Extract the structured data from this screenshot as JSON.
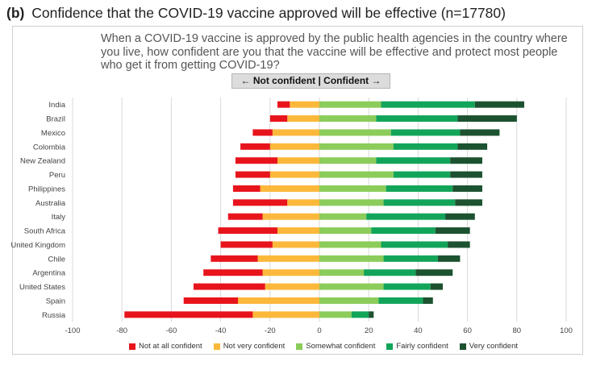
{
  "heading": {
    "panel_label": "(b)",
    "title": "Confidence that the COVID-19 vaccine approved will be effective (n=17780)"
  },
  "question": "When a COVID-19 vaccine is approved by the public health agencies in the country where you live, how confident are you that the vaccine will be effective and protect most people who get it from getting COVID-19?",
  "direction_label": "← Not confident | Confident →",
  "colors": {
    "not_at_all": "#e8141c",
    "not_very": "#fbb83a",
    "somewhat": "#8ccc5a",
    "fairly": "#12a55a",
    "very": "#1c5230"
  },
  "chart_data": {
    "type": "bar",
    "orientation": "horizontal",
    "stacking": "diverging",
    "categories": [
      "India",
      "Brazil",
      "Mexico",
      "Colombia",
      "New Zealand",
      "Peru",
      "Philippines",
      "Australia",
      "Italy",
      "South Africa",
      "United Kingdom",
      "Chile",
      "Argentina",
      "United States",
      "Spain",
      "Russia"
    ],
    "series": [
      {
        "name": "Not at all confident",
        "key": "not_at_all",
        "side": "negative",
        "values": [
          5,
          7,
          8,
          12,
          17,
          14,
          11,
          22,
          14,
          24,
          21,
          19,
          24,
          29,
          22,
          52
        ]
      },
      {
        "name": "Not very confident",
        "key": "not_very",
        "side": "negative",
        "values": [
          12,
          13,
          19,
          20,
          17,
          20,
          24,
          13,
          23,
          17,
          19,
          25,
          23,
          22,
          33,
          27
        ]
      },
      {
        "name": "Somewhat confident",
        "key": "somewhat",
        "side": "positive",
        "values": [
          25,
          23,
          29,
          30,
          23,
          30,
          27,
          26,
          19,
          21,
          25,
          26,
          18,
          26,
          24,
          13
        ]
      },
      {
        "name": "Fairly confident",
        "key": "fairly",
        "side": "positive",
        "values": [
          38,
          33,
          28,
          26,
          30,
          23,
          27,
          29,
          32,
          26,
          27,
          22,
          21,
          19,
          18,
          7
        ]
      },
      {
        "name": "Very confident",
        "key": "very",
        "side": "positive",
        "values": [
          20,
          24,
          16,
          12,
          13,
          13,
          12,
          11,
          12,
          14,
          9,
          9,
          15,
          5,
          4,
          2
        ]
      }
    ],
    "xlim": [
      -100,
      100
    ],
    "xticks": [
      -100,
      -80,
      -60,
      -40,
      -20,
      0,
      20,
      40,
      60,
      80,
      100
    ],
    "grid": "vertical",
    "legend_position": "bottom"
  }
}
